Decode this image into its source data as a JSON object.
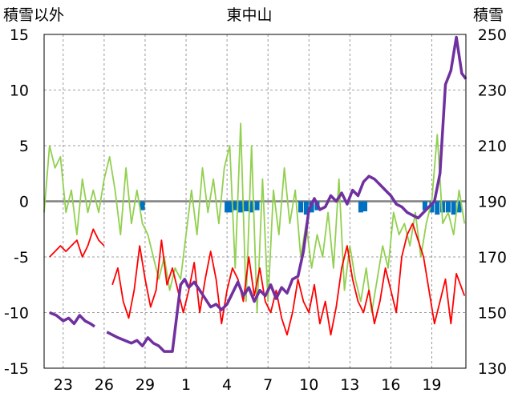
{
  "chart_data": {
    "type": "line",
    "title": "東中山",
    "left_axis_label": "積雪以外",
    "right_axis_label": "積雪",
    "left_ylim": [
      -15,
      15
    ],
    "left_ticks": [
      "15",
      "10",
      "5",
      "0",
      "-5",
      "-10",
      "-15"
    ],
    "right_ylim": [
      130,
      250
    ],
    "right_ticks": [
      "250",
      "230",
      "210",
      "190",
      "170",
      "150",
      "130"
    ],
    "x_ticks": [
      "23",
      "26",
      "29",
      "1",
      "4",
      "7",
      "10",
      "13",
      "16",
      "19"
    ],
    "x_tick_day_index": [
      2,
      5,
      8,
      11,
      14,
      17,
      20,
      23,
      26,
      29
    ],
    "xlim_day_index": [
      0.6,
      31.5
    ],
    "grid": true,
    "colors": {
      "temperature": "#ff0000",
      "wind": "#92d050",
      "snow_depth": "#7030a0",
      "precipitation": "#0070c0",
      "zero_line": "#808080",
      "grid": "#808080"
    },
    "series": [
      {
        "axis": "left",
        "color": "#92d050",
        "values": [
          [
            0.6,
            -1
          ],
          [
            1.0,
            5
          ],
          [
            1.4,
            3
          ],
          [
            1.8,
            4
          ],
          [
            2.2,
            -1
          ],
          [
            2.6,
            1
          ],
          [
            3.0,
            -3
          ],
          [
            3.4,
            2
          ],
          [
            3.8,
            -1
          ],
          [
            4.2,
            1
          ],
          [
            4.6,
            -1
          ],
          [
            5.0,
            2
          ],
          [
            5.4,
            4
          ],
          [
            5.8,
            1
          ],
          [
            6.2,
            -3
          ],
          [
            6.6,
            3
          ],
          [
            7.0,
            -2
          ],
          [
            7.4,
            1
          ],
          [
            7.8,
            -2
          ],
          [
            8.2,
            -3
          ],
          [
            8.6,
            -5
          ],
          [
            9.0,
            -7
          ],
          [
            9.4,
            -5
          ],
          [
            9.8,
            -8
          ],
          [
            10.2,
            -6
          ],
          [
            10.6,
            -7
          ],
          [
            11.0,
            -3
          ],
          [
            11.4,
            1
          ],
          [
            11.8,
            -3
          ],
          [
            12.2,
            3
          ],
          [
            12.6,
            -1
          ],
          [
            13.0,
            2
          ],
          [
            13.4,
            -2
          ],
          [
            13.8,
            3
          ],
          [
            14.2,
            5
          ],
          [
            14.6,
            -6
          ],
          [
            15.0,
            7
          ],
          [
            15.4,
            -9
          ],
          [
            15.8,
            5
          ],
          [
            16.2,
            -10
          ],
          [
            16.6,
            2
          ],
          [
            17.0,
            -9
          ],
          [
            17.4,
            1
          ],
          [
            17.8,
            -3
          ],
          [
            18.2,
            3
          ],
          [
            18.6,
            -2
          ],
          [
            19.0,
            1
          ],
          [
            19.4,
            -5
          ],
          [
            19.8,
            -2
          ],
          [
            20.2,
            -6
          ],
          [
            20.6,
            -3
          ],
          [
            21.0,
            -5
          ],
          [
            21.4,
            -1
          ],
          [
            21.8,
            -6
          ],
          [
            22.2,
            2
          ],
          [
            22.6,
            -8
          ],
          [
            23.0,
            -4
          ],
          [
            23.4,
            -7
          ],
          [
            23.8,
            -9
          ],
          [
            24.2,
            -6
          ],
          [
            24.6,
            -10
          ],
          [
            25.0,
            -7
          ],
          [
            25.4,
            -4
          ],
          [
            25.8,
            -6
          ],
          [
            26.2,
            -1
          ],
          [
            26.6,
            -3
          ],
          [
            27.0,
            -2
          ],
          [
            27.4,
            -4
          ],
          [
            27.8,
            -1
          ],
          [
            28.2,
            -5
          ],
          [
            28.6,
            -2
          ],
          [
            29.0,
            0
          ],
          [
            29.4,
            6
          ],
          [
            29.8,
            -2
          ],
          [
            30.2,
            -1
          ],
          [
            30.6,
            -3
          ],
          [
            31.0,
            1
          ],
          [
            31.4,
            -2
          ]
        ]
      },
      {
        "axis": "left",
        "color": "#ff0000",
        "values": [
          [
            1.0,
            -5
          ],
          [
            1.4,
            -4.5
          ],
          [
            1.8,
            -4
          ],
          [
            2.2,
            -4.5
          ],
          [
            2.6,
            -4
          ],
          [
            3.0,
            -3.5
          ],
          [
            3.4,
            -5
          ],
          [
            3.8,
            -4
          ],
          [
            4.2,
            -2.5
          ],
          [
            4.6,
            -3.5
          ],
          [
            5.0,
            -4
          ],
          [
            5.2,
            null
          ],
          [
            5.6,
            -7.5
          ],
          [
            6.0,
            -6
          ],
          [
            6.4,
            -9
          ],
          [
            6.8,
            -10.5
          ],
          [
            7.2,
            -8
          ],
          [
            7.6,
            -4
          ],
          [
            8.0,
            -7
          ],
          [
            8.4,
            -9.5
          ],
          [
            8.8,
            -8
          ],
          [
            9.2,
            -3.5
          ],
          [
            9.6,
            -7.5
          ],
          [
            10.0,
            -6
          ],
          [
            10.4,
            -8
          ],
          [
            10.8,
            -10
          ],
          [
            11.2,
            -8
          ],
          [
            11.6,
            -5.5
          ],
          [
            12.0,
            -10
          ],
          [
            12.4,
            -7
          ],
          [
            12.8,
            -4.5
          ],
          [
            13.2,
            -7
          ],
          [
            13.6,
            -11
          ],
          [
            14.0,
            -8
          ],
          [
            14.4,
            -6
          ],
          [
            14.8,
            -7
          ],
          [
            15.2,
            -9
          ],
          [
            15.6,
            -5
          ],
          [
            16.0,
            -8.5
          ],
          [
            16.4,
            -6
          ],
          [
            16.8,
            -9
          ],
          [
            17.2,
            -10
          ],
          [
            17.6,
            -8
          ],
          [
            18.0,
            -10.5
          ],
          [
            18.4,
            -12
          ],
          [
            18.8,
            -10
          ],
          [
            19.2,
            -7
          ],
          [
            19.6,
            -9
          ],
          [
            20.0,
            -10
          ],
          [
            20.4,
            -7.5
          ],
          [
            20.8,
            -11
          ],
          [
            21.2,
            -9
          ],
          [
            21.6,
            -12
          ],
          [
            22.0,
            -9.5
          ],
          [
            22.4,
            -6
          ],
          [
            22.8,
            -4
          ],
          [
            23.2,
            -7
          ],
          [
            23.6,
            -9
          ],
          [
            24.0,
            -10
          ],
          [
            24.4,
            -8
          ],
          [
            24.8,
            -11
          ],
          [
            25.2,
            -9
          ],
          [
            25.6,
            -6
          ],
          [
            26.0,
            -8
          ],
          [
            26.4,
            -10
          ],
          [
            26.8,
            -5
          ],
          [
            27.2,
            -3
          ],
          [
            27.6,
            -2
          ],
          [
            28.0,
            -3.5
          ],
          [
            28.4,
            -5
          ],
          [
            28.8,
            -8
          ],
          [
            29.2,
            -11
          ],
          [
            29.6,
            -9
          ],
          [
            30.0,
            -7
          ],
          [
            30.4,
            -11
          ],
          [
            30.8,
            -6.5
          ],
          [
            31.4,
            -8.5
          ]
        ]
      },
      {
        "axis": "right",
        "color": "#7030a0",
        "values": [
          [
            1.0,
            150
          ],
          [
            1.5,
            149
          ],
          [
            2.0,
            147
          ],
          [
            2.4,
            148
          ],
          [
            2.8,
            146
          ],
          [
            3.2,
            149
          ],
          [
            3.6,
            147
          ],
          [
            4.0,
            146
          ],
          [
            4.3,
            145
          ],
          [
            4.8,
            null
          ],
          [
            5.2,
            143
          ],
          [
            5.6,
            142
          ],
          [
            6.0,
            141
          ],
          [
            6.5,
            140
          ],
          [
            7.0,
            139
          ],
          [
            7.4,
            140
          ],
          [
            7.8,
            138
          ],
          [
            8.2,
            141
          ],
          [
            8.6,
            139
          ],
          [
            9.0,
            138
          ],
          [
            9.4,
            136
          ],
          [
            10.0,
            136
          ],
          [
            10.3,
            148
          ],
          [
            10.6,
            160
          ],
          [
            10.9,
            162
          ],
          [
            11.2,
            159
          ],
          [
            11.6,
            161
          ],
          [
            12.0,
            158
          ],
          [
            12.4,
            155
          ],
          [
            12.8,
            152
          ],
          [
            13.2,
            153
          ],
          [
            13.6,
            151
          ],
          [
            14.0,
            153
          ],
          [
            14.4,
            157
          ],
          [
            14.8,
            161
          ],
          [
            15.2,
            156
          ],
          [
            15.6,
            159
          ],
          [
            16.0,
            154
          ],
          [
            16.4,
            158
          ],
          [
            16.8,
            156
          ],
          [
            17.2,
            160
          ],
          [
            17.6,
            155
          ],
          [
            18.0,
            159
          ],
          [
            18.4,
            157
          ],
          [
            18.8,
            162
          ],
          [
            19.2,
            163
          ],
          [
            19.6,
            172
          ],
          [
            20.0,
            187
          ],
          [
            20.4,
            191
          ],
          [
            20.8,
            187
          ],
          [
            21.2,
            188
          ],
          [
            21.6,
            192
          ],
          [
            22.0,
            190
          ],
          [
            22.4,
            193
          ],
          [
            22.8,
            189
          ],
          [
            23.2,
            194
          ],
          [
            23.6,
            192
          ],
          [
            24.0,
            197
          ],
          [
            24.4,
            199
          ],
          [
            24.8,
            198
          ],
          [
            25.2,
            196
          ],
          [
            25.6,
            194
          ],
          [
            26.0,
            192
          ],
          [
            26.4,
            189
          ],
          [
            26.8,
            188
          ],
          [
            27.2,
            186
          ],
          [
            27.6,
            185
          ],
          [
            28.0,
            184
          ],
          [
            28.4,
            186
          ],
          [
            28.8,
            188
          ],
          [
            29.2,
            190
          ],
          [
            29.6,
            200
          ],
          [
            30.0,
            232
          ],
          [
            30.4,
            237
          ],
          [
            30.8,
            249
          ],
          [
            31.2,
            236
          ],
          [
            31.5,
            234
          ]
        ]
      },
      {
        "axis": "left",
        "type": "bar",
        "color": "#0070c0",
        "values": [
          [
            7.8,
            -0.8
          ],
          [
            14.0,
            -1
          ],
          [
            14.3,
            -1
          ],
          [
            14.6,
            -0.8
          ],
          [
            15.0,
            -1
          ],
          [
            15.4,
            -0.9
          ],
          [
            15.8,
            -1
          ],
          [
            16.2,
            -0.8
          ],
          [
            19.4,
            -1
          ],
          [
            19.8,
            -1.2
          ],
          [
            20.2,
            -1
          ],
          [
            20.6,
            -0.8
          ],
          [
            23.8,
            -1
          ],
          [
            24.1,
            -0.9
          ],
          [
            28.5,
            -0.8
          ],
          [
            29.0,
            -1
          ],
          [
            29.4,
            -1.2
          ],
          [
            29.8,
            -1
          ],
          [
            30.2,
            -1
          ],
          [
            30.6,
            -1.2
          ],
          [
            31.0,
            -1
          ]
        ]
      }
    ]
  }
}
